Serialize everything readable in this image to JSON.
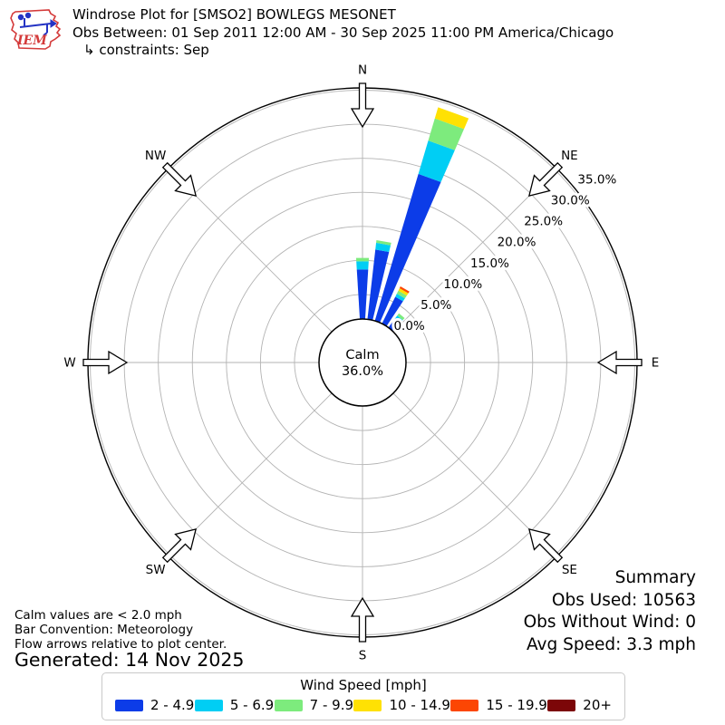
{
  "header": {
    "logo_text": "IEM",
    "title": "Windrose Plot for [SMSO2] BOWLEGS MESONET",
    "subtitle": "Obs Between: 01 Sep 2011 12:00 AM - 30 Sep 2025 11:00 PM America/Chicago",
    "constraints": "↳ constraints: Sep"
  },
  "chart_data": {
    "type": "windrose-polar-bar",
    "units": "mph",
    "calm": {
      "label": "Calm",
      "value": "36.0%"
    },
    "rings_pct": [
      0,
      5,
      10,
      15,
      20,
      25,
      30,
      35
    ],
    "ring_labels": [
      "0.0%",
      "5.0%",
      "10.0%",
      "15.0%",
      "20.0%",
      "25.0%",
      "30.0%",
      "35.0%"
    ],
    "compass_labels": [
      "N",
      "NE",
      "E",
      "SE",
      "SW",
      "S",
      "W",
      "NW"
    ],
    "compass_angles_deg": [
      0,
      45,
      90,
      135,
      225,
      180,
      270,
      315
    ],
    "sector_width_deg": 10,
    "speed_bins": [
      {
        "label": "2 - 4.9",
        "color": "#0c3ce8"
      },
      {
        "label": "5 - 6.9",
        "color": "#00cef4"
      },
      {
        "label": "7 - 9.9",
        "color": "#7deb7d"
      },
      {
        "label": "10 - 14.9",
        "color": "#ffe103"
      },
      {
        "label": "15 - 19.9",
        "color": "#fc4603"
      },
      {
        "label": "20+",
        "color": "#7c0608"
      }
    ],
    "bars": [
      {
        "direction_deg": 0,
        "segments_pct": [
          8.7,
          1.2,
          0.5,
          0,
          0,
          0
        ]
      },
      {
        "direction_deg": 10,
        "segments_pct": [
          11.7,
          1.0,
          0.4,
          0,
          0,
          0
        ]
      },
      {
        "direction_deg": 20,
        "segments_pct": [
          23.9,
          5.1,
          3.4,
          1.7,
          0,
          0
        ]
      },
      {
        "direction_deg": 30,
        "segments_pct": [
          5.8,
          0.5,
          0.5,
          0.4,
          0.3,
          0
        ]
      },
      {
        "direction_deg": 40,
        "segments_pct": [
          3.1,
          0.5,
          0.4,
          0,
          0,
          0
        ]
      }
    ]
  },
  "legend": {
    "title": "Wind Speed [mph]"
  },
  "notes": {
    "line1": "Calm values are < 2.0 mph",
    "line2": "Bar Convention: Meteorology",
    "line3": "Flow arrows relative to plot center."
  },
  "generated": "Generated: 14 Nov 2025",
  "summary": {
    "title": "Summary",
    "obs_used": "Obs Used: 10563",
    "obs_without_wind": "Obs Without Wind: 0",
    "avg_speed": "Avg Speed: 3.3 mph"
  },
  "colors": {
    "grid": "#b3b3b3",
    "outline": "#000000",
    "logo_red": "#d43a3a",
    "logo_blue": "#2433c4"
  }
}
